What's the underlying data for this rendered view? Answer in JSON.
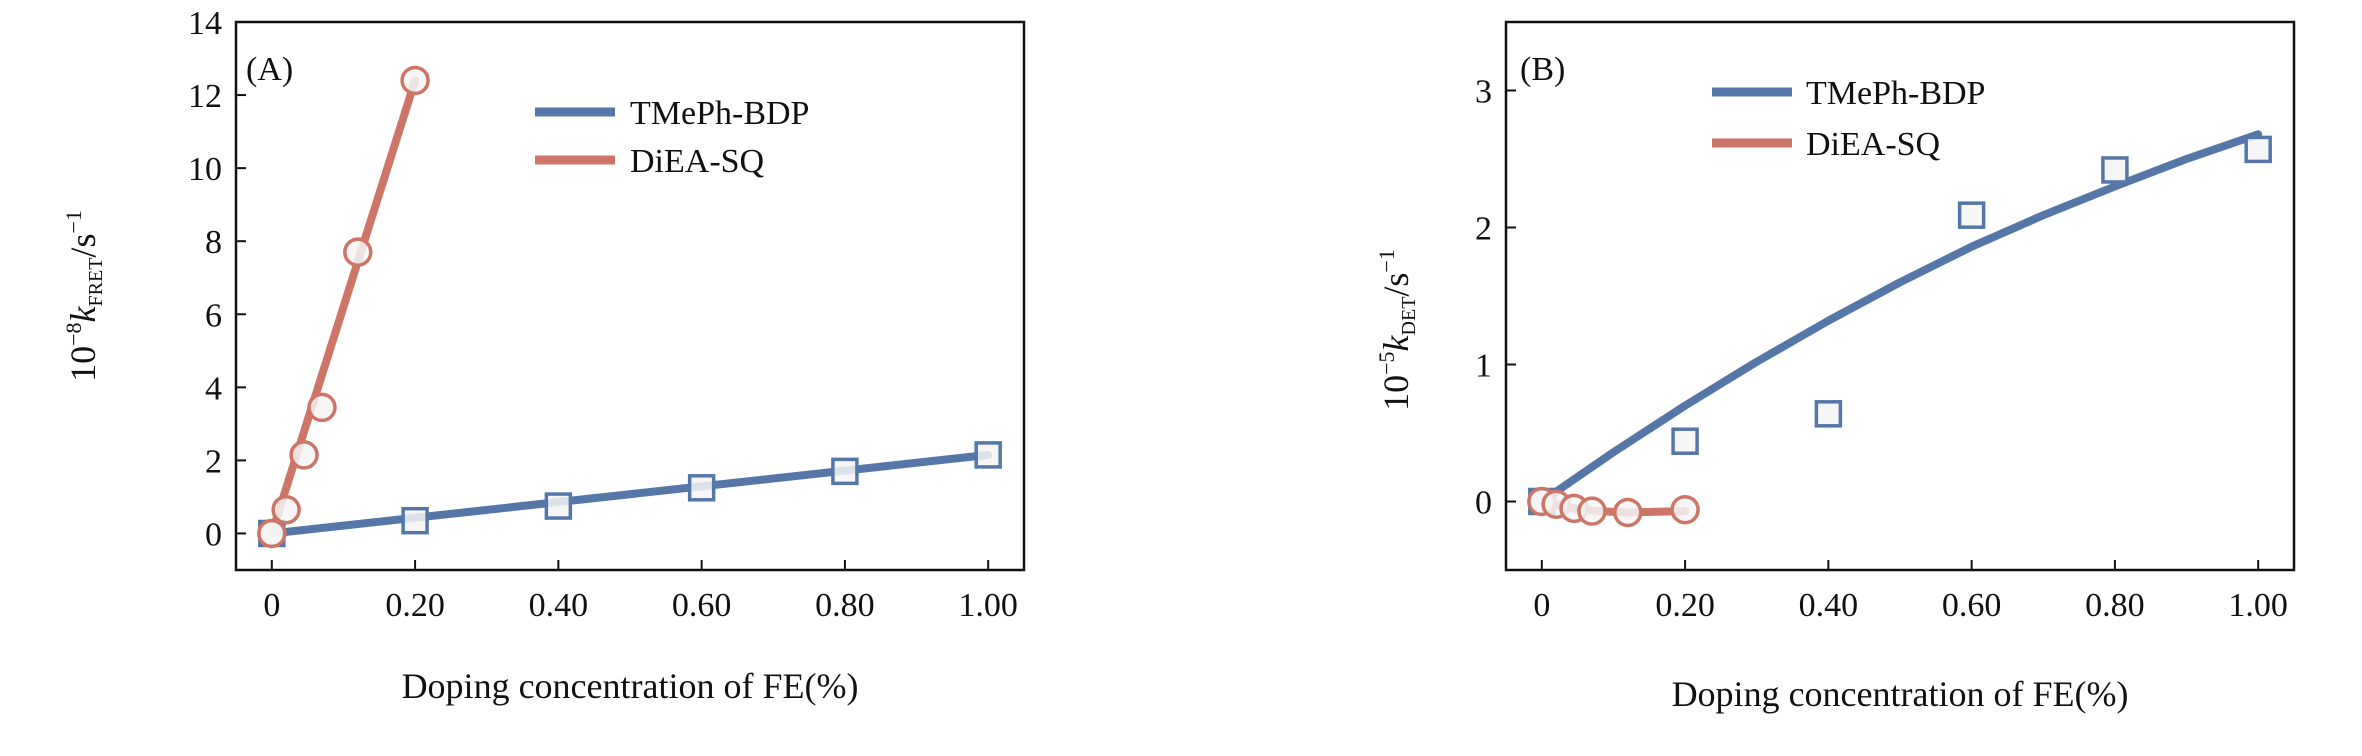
{
  "colors": {
    "series_blue": "#5577a8",
    "series_red": "#cd7566",
    "axis": "#111111",
    "marker_fill": "#f4f4f6"
  },
  "chart_data": [
    {
      "panel": "(A)",
      "type": "scatter",
      "xlabel": "Doping concentration of FE(%)",
      "ylabel": {
        "prefix": "10",
        "exp": "−8",
        "k": "k",
        "sub": "FRET",
        "unit": "/s",
        "unit_exp": "−1"
      },
      "xlim": [
        -0.05,
        1.05
      ],
      "ylim": [
        -1,
        14
      ],
      "xticks": [
        0,
        0.2,
        0.4,
        0.6,
        0.8,
        1.0
      ],
      "xtick_labels": [
        "0",
        "0.20",
        "0.40",
        "0.60",
        "0.80",
        "1.00"
      ],
      "yticks": [
        0,
        2,
        4,
        6,
        8,
        10,
        12,
        14
      ],
      "ytick_labels": [
        "0",
        "2",
        "4",
        "6",
        "8",
        "10",
        "12",
        "14"
      ],
      "legend_position": "top-right",
      "series": [
        {
          "name": "TMePh-BDP",
          "color": "#5577a8",
          "marker": "square",
          "points": [
            [
              0,
              0.0
            ],
            [
              0.2,
              0.35
            ],
            [
              0.4,
              0.75
            ],
            [
              0.6,
              1.25
            ],
            [
              0.8,
              1.7
            ],
            [
              1.0,
              2.15
            ]
          ],
          "fit_line": [
            [
              0,
              0.0
            ],
            [
              1.0,
              2.15
            ]
          ]
        },
        {
          "name": "DiEA-SQ",
          "color": "#cd7566",
          "marker": "circle",
          "points": [
            [
              0,
              0.0
            ],
            [
              0.02,
              0.65
            ],
            [
              0.045,
              2.15
            ],
            [
              0.07,
              3.45
            ],
            [
              0.12,
              7.7
            ],
            [
              0.2,
              12.4
            ]
          ],
          "fit_line": [
            [
              0,
              0.0
            ],
            [
              0.2,
              12.4
            ]
          ]
        }
      ]
    },
    {
      "panel": "(B)",
      "type": "scatter",
      "xlabel": "Doping concentration of FE(%)",
      "ylabel": {
        "prefix": "10",
        "exp": "−5",
        "k": "k",
        "sub": "DET",
        "unit": "/s",
        "unit_exp": "−1"
      },
      "xlim": [
        -0.05,
        1.05
      ],
      "ylim": [
        -0.5,
        3.5
      ],
      "xticks": [
        0,
        0.2,
        0.4,
        0.6,
        0.8,
        1.0
      ],
      "xtick_labels": [
        "0",
        "0.20",
        "0.40",
        "0.60",
        "0.80",
        "1.00"
      ],
      "yticks": [
        0,
        1,
        2,
        3
      ],
      "ytick_labels": [
        "0",
        "1",
        "2",
        "3"
      ],
      "legend_position": "top-left",
      "series": [
        {
          "name": "TMePh-BDP",
          "color": "#5577a8",
          "marker": "square",
          "points": [
            [
              0,
              0.0
            ],
            [
              0.2,
              0.44
            ],
            [
              0.4,
              0.64
            ],
            [
              0.6,
              2.09
            ],
            [
              0.8,
              2.42
            ],
            [
              1.0,
              2.57
            ]
          ],
          "fit_curve": [
            [
              0,
              0.0
            ],
            [
              0.1,
              0.36
            ],
            [
              0.2,
              0.7
            ],
            [
              0.3,
              1.02
            ],
            [
              0.4,
              1.32
            ],
            [
              0.5,
              1.6
            ],
            [
              0.6,
              1.86
            ],
            [
              0.7,
              2.09
            ],
            [
              0.8,
              2.3
            ],
            [
              0.9,
              2.5
            ],
            [
              1.0,
              2.68
            ]
          ]
        },
        {
          "name": "DiEA-SQ",
          "color": "#cd7566",
          "marker": "circle",
          "points": [
            [
              0,
              0.0
            ],
            [
              0.02,
              -0.02
            ],
            [
              0.045,
              -0.05
            ],
            [
              0.07,
              -0.07
            ],
            [
              0.12,
              -0.08
            ],
            [
              0.2,
              -0.06
            ]
          ],
          "fit_curve": [
            [
              0,
              0.0
            ],
            [
              0.045,
              -0.05
            ],
            [
              0.08,
              -0.07
            ],
            [
              0.12,
              -0.08
            ],
            [
              0.2,
              -0.07
            ]
          ]
        }
      ]
    }
  ]
}
